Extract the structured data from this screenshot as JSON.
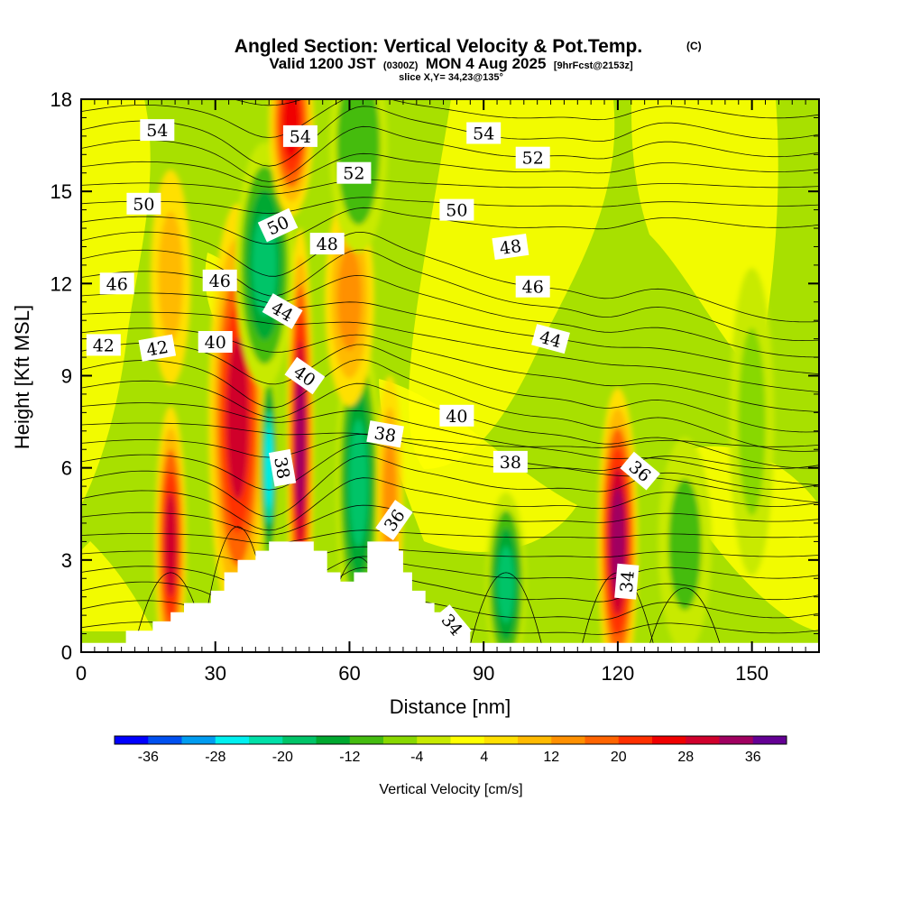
{
  "header": {
    "title": "Angled Section: Vertical Velocity & Pot.Temp.",
    "title_mark": "(C)",
    "valid_prefix": "Valid 1200 JST",
    "valid_utc": "(0300Z)",
    "valid_date": "MON 4 Aug 2025",
    "forecast_info": "[9hrFcst@2153z]",
    "slice_info": "slice X,Y= 34,23@135°"
  },
  "chart_data": {
    "type": "heatmap",
    "xlabel": "Distance [nm]",
    "ylabel": "Height [Kft MSL]",
    "xlim": [
      0,
      165
    ],
    "ylim": [
      0,
      18
    ],
    "x_ticks": [
      0,
      30,
      60,
      90,
      120,
      150
    ],
    "x_tick_labels": [
      "0",
      "30",
      "60",
      "90",
      "120",
      "150"
    ],
    "y_ticks": [
      0,
      3,
      6,
      9,
      12,
      15,
      18
    ],
    "y_tick_labels": [
      "0",
      "3",
      "6",
      "9",
      "12",
      "15",
      "18"
    ],
    "terrain": [
      [
        0,
        0.3
      ],
      [
        10,
        0.3
      ],
      [
        10,
        0.7
      ],
      [
        16,
        0.7
      ],
      [
        16,
        1.0
      ],
      [
        20,
        1.0
      ],
      [
        20,
        1.3
      ],
      [
        23,
        1.3
      ],
      [
        23,
        1.6
      ],
      [
        29,
        1.6
      ],
      [
        29,
        2.0
      ],
      [
        32,
        2.0
      ],
      [
        32,
        2.6
      ],
      [
        35,
        2.6
      ],
      [
        35,
        3.0
      ],
      [
        39,
        3.0
      ],
      [
        39,
        3.3
      ],
      [
        42,
        3.3
      ],
      [
        42,
        3.6
      ],
      [
        52,
        3.6
      ],
      [
        52,
        3.3
      ],
      [
        55,
        3.3
      ],
      [
        55,
        2.6
      ],
      [
        58,
        2.6
      ],
      [
        58,
        2.3
      ],
      [
        61,
        2.3
      ],
      [
        61,
        2.6
      ],
      [
        64,
        2.6
      ],
      [
        64,
        3.6
      ],
      [
        71,
        3.6
      ],
      [
        71,
        3.3
      ],
      [
        72,
        3.3
      ],
      [
        72,
        2.6
      ],
      [
        74,
        2.6
      ],
      [
        74,
        2.0
      ],
      [
        77,
        2.0
      ],
      [
        77,
        1.6
      ],
      [
        79,
        1.6
      ],
      [
        79,
        1.3
      ],
      [
        81,
        1.3
      ],
      [
        81,
        1.0
      ],
      [
        84,
        1.0
      ],
      [
        84,
        0.7
      ],
      [
        87,
        0.7
      ],
      [
        87,
        0.3
      ],
      [
        165,
        0.3
      ]
    ],
    "vertical_velocity_cells": [
      {
        "x": 20,
        "y": 3.5,
        "w": 7,
        "h": 9,
        "value": 28
      },
      {
        "x": 35,
        "y": 7.6,
        "w": 13,
        "h": 14,
        "value": 28
      },
      {
        "x": 42,
        "y": 6.0,
        "w": 4,
        "h": 7,
        "value": -26
      },
      {
        "x": 49,
        "y": 6.8,
        "w": 6,
        "h": 14,
        "value": 34
      },
      {
        "x": 62,
        "y": 5.5,
        "w": 10,
        "h": 10,
        "value": -18
      },
      {
        "x": 69,
        "y": 5.0,
        "w": 6,
        "h": 8,
        "value": 14
      },
      {
        "x": 95,
        "y": 2.2,
        "w": 9,
        "h": 6,
        "value": -20
      },
      {
        "x": 120,
        "y": 3.6,
        "w": 9,
        "h": 10,
        "value": 32
      },
      {
        "x": 41,
        "y": 12.6,
        "w": 13,
        "h": 8,
        "value": -18
      },
      {
        "x": 60,
        "y": 11.5,
        "w": 11,
        "h": 7,
        "value": 12
      },
      {
        "x": 20,
        "y": 12.2,
        "w": 9,
        "h": 7,
        "value": 10
      },
      {
        "x": 47,
        "y": 17.2,
        "w": 10,
        "h": 6,
        "value": 24
      },
      {
        "x": 62,
        "y": 16.5,
        "w": 13,
        "h": 7,
        "value": -12
      },
      {
        "x": 150,
        "y": 7.5,
        "w": 10,
        "h": 10,
        "value": -8
      },
      {
        "x": 135,
        "y": 3.5,
        "w": 12,
        "h": 7,
        "value": -10
      }
    ],
    "theta_labels": [
      {
        "x": 17,
        "y": 17.0,
        "text": "54",
        "angle": 0
      },
      {
        "x": 49,
        "y": 16.8,
        "text": "54",
        "angle": 0
      },
      {
        "x": 90,
        "y": 16.9,
        "text": "54",
        "angle": 0
      },
      {
        "x": 61,
        "y": 15.6,
        "text": "52",
        "angle": 0
      },
      {
        "x": 101,
        "y": 16.1,
        "text": "52",
        "angle": 0
      },
      {
        "x": 14,
        "y": 14.6,
        "text": "50",
        "angle": 0
      },
      {
        "x": 44,
        "y": 13.9,
        "text": "50",
        "angle": -25
      },
      {
        "x": 84,
        "y": 14.4,
        "text": "50",
        "angle": 0
      },
      {
        "x": 55,
        "y": 13.3,
        "text": "48",
        "angle": 0
      },
      {
        "x": 96,
        "y": 13.2,
        "text": "48",
        "angle": -8
      },
      {
        "x": 8,
        "y": 12.0,
        "text": "46",
        "angle": 0
      },
      {
        "x": 31,
        "y": 12.1,
        "text": "46",
        "angle": 0
      },
      {
        "x": 101,
        "y": 11.9,
        "text": "46",
        "angle": 0
      },
      {
        "x": 45,
        "y": 11.1,
        "text": "44",
        "angle": 30
      },
      {
        "x": 105,
        "y": 10.2,
        "text": "44",
        "angle": 15
      },
      {
        "x": 5,
        "y": 10.0,
        "text": "42",
        "angle": 0
      },
      {
        "x": 17,
        "y": 9.9,
        "text": "42",
        "angle": -10
      },
      {
        "x": 30,
        "y": 10.1,
        "text": "40",
        "angle": 0
      },
      {
        "x": 50,
        "y": 9.0,
        "text": "40",
        "angle": 35
      },
      {
        "x": 84,
        "y": 7.7,
        "text": "40",
        "angle": 0
      },
      {
        "x": 45,
        "y": 6.0,
        "text": "38",
        "angle": 80
      },
      {
        "x": 68,
        "y": 7.1,
        "text": "38",
        "angle": 10
      },
      {
        "x": 96,
        "y": 6.2,
        "text": "38",
        "angle": 0
      },
      {
        "x": 125,
        "y": 5.9,
        "text": "36",
        "angle": 40
      },
      {
        "x": 70,
        "y": 4.3,
        "text": "36",
        "angle": -55
      },
      {
        "x": 122,
        "y": 2.3,
        "text": "34",
        "angle": -85
      },
      {
        "x": 83,
        "y": 0.9,
        "text": "34",
        "angle": 50
      }
    ],
    "colorbar": {
      "label": "Vertical Velocity [cm/s]",
      "tick_labels": [
        "-36",
        "-28",
        "-20",
        "-12",
        "-4",
        "4",
        "12",
        "20",
        "28",
        "36"
      ],
      "colors": [
        "#0000ff",
        "#0050f0",
        "#009cf0",
        "#00f0f0",
        "#00e0a8",
        "#00c468",
        "#00a830",
        "#44bc10",
        "#88d800",
        "#c8ea00",
        "#ffff00",
        "#ffe000",
        "#ffba00",
        "#ff9000",
        "#ff6400",
        "#ff3000",
        "#f00000",
        "#d0002c",
        "#a00060",
        "#640094"
      ],
      "min": -40,
      "max": 40
    }
  }
}
